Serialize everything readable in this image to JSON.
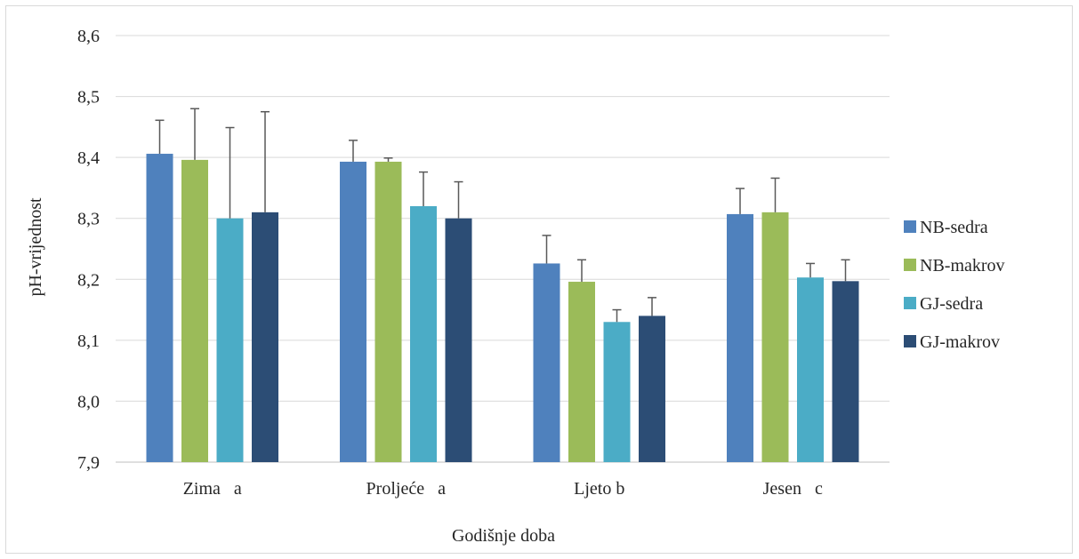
{
  "chart_data": {
    "type": "bar",
    "title": "",
    "xlabel": "Godišnje doba",
    "ylabel": "pH-vrijednost",
    "ylim": [
      7.9,
      8.6
    ],
    "yticks": [
      "7,9",
      "8,0",
      "8,1",
      "8,2",
      "8,3",
      "8,4",
      "8,5",
      "8,6"
    ],
    "ytick_values": [
      7.9,
      8.0,
      8.1,
      8.2,
      8.3,
      8.4,
      8.5,
      8.6
    ],
    "grid": true,
    "legend_position": "right",
    "categories": [
      "Zima   a",
      "Proljeće   a",
      "Ljeto b",
      "Jesen   c"
    ],
    "series": [
      {
        "name": "NB-sedra",
        "color": "#4f81bd",
        "values": [
          8.406,
          8.393,
          8.226,
          8.307
        ],
        "errors": [
          0.055,
          0.035,
          0.046,
          0.042
        ]
      },
      {
        "name": "NB-makrov",
        "color": "#9bbb59",
        "values": [
          8.396,
          8.393,
          8.196,
          8.31
        ],
        "errors": [
          0.084,
          0.006,
          0.036,
          0.056
        ]
      },
      {
        "name": "GJ-sedra",
        "color": "#4bacc6",
        "values": [
          8.3,
          8.32,
          8.13,
          8.203
        ],
        "errors": [
          0.149,
          0.056,
          0.02,
          0.023
        ]
      },
      {
        "name": "GJ-makrov",
        "color": "#2c4d75",
        "values": [
          8.31,
          8.3,
          8.14,
          8.197
        ],
        "errors": [
          0.165,
          0.06,
          0.03,
          0.035
        ]
      }
    ]
  }
}
